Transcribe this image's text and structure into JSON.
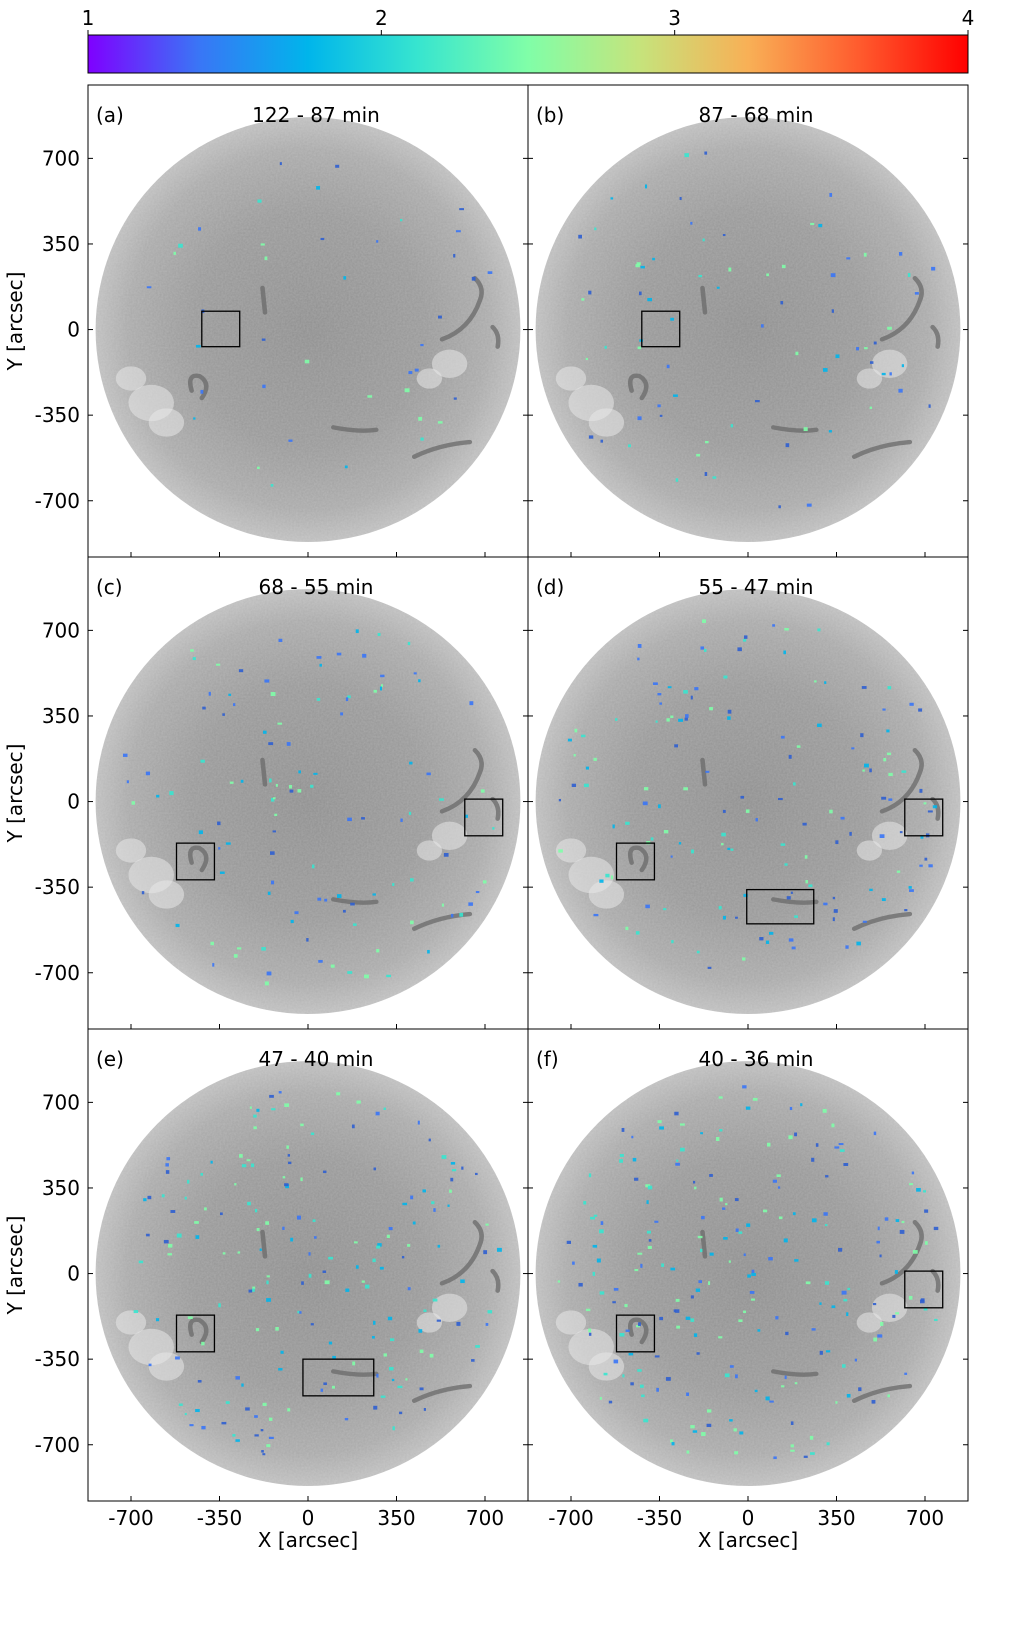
{
  "chart_data": {
    "type": "heatmap",
    "colorbar": {
      "ticks": [
        "1",
        "2",
        "3",
        "4"
      ],
      "tick_values": [
        1,
        2,
        3,
        4
      ],
      "range": [
        1,
        4
      ],
      "colormap": "rainbow",
      "stops": [
        "#7f00ff",
        "#3a75f6",
        "#00b5eb",
        "#37e5cf",
        "#80fea8",
        "#c5e47c",
        "#f8b056",
        "#ff5c2e",
        "#ff0000"
      ]
    },
    "axes": {
      "xlabel": "X [arcsec]",
      "ylabel": "Y [arcsec]",
      "xticks": [
        -700,
        -350,
        0,
        350,
        700
      ],
      "yticks": [
        700,
        350,
        0,
        -350,
        -700
      ],
      "xlim": [
        -870,
        870
      ],
      "ylim": [
        -930,
        1000
      ],
      "disk_radius": 840
    },
    "panels": [
      {
        "id": "(a)",
        "title": "122 - 87 min",
        "boxes": [
          {
            "x": [
              -420,
              -270
            ],
            "y": [
              -70,
              75
            ]
          }
        ]
      },
      {
        "id": "(b)",
        "title": "87 - 68 min",
        "boxes": [
          {
            "x": [
              -420,
              -270
            ],
            "y": [
              -70,
              75
            ]
          }
        ]
      },
      {
        "id": "(c)",
        "title": "68 - 55 min",
        "boxes": [
          {
            "x": [
              -520,
              -370
            ],
            "y": [
              -320,
              -170
            ]
          },
          {
            "x": [
              620,
              770
            ],
            "y": [
              -140,
              10
            ]
          }
        ]
      },
      {
        "id": "(d)",
        "title": "55 - 47 min",
        "boxes": [
          {
            "x": [
              -520,
              -370
            ],
            "y": [
              -320,
              -170
            ]
          },
          {
            "x": [
              -5,
              260
            ],
            "y": [
              -500,
              -360
            ]
          },
          {
            "x": [
              620,
              770
            ],
            "y": [
              -140,
              10
            ]
          }
        ]
      },
      {
        "id": "(e)",
        "title": "47 - 40 min",
        "boxes": [
          {
            "x": [
              -520,
              -370
            ],
            "y": [
              -320,
              -170
            ]
          },
          {
            "x": [
              -20,
              260
            ],
            "y": [
              -500,
              -350
            ]
          }
        ]
      },
      {
        "id": "(f)",
        "title": "40 - 36 min",
        "boxes": [
          {
            "x": [
              -520,
              -370
            ],
            "y": [
              -320,
              -170
            ]
          },
          {
            "x": [
              620,
              770
            ],
            "y": [
              -140,
              10
            ]
          }
        ]
      }
    ]
  }
}
